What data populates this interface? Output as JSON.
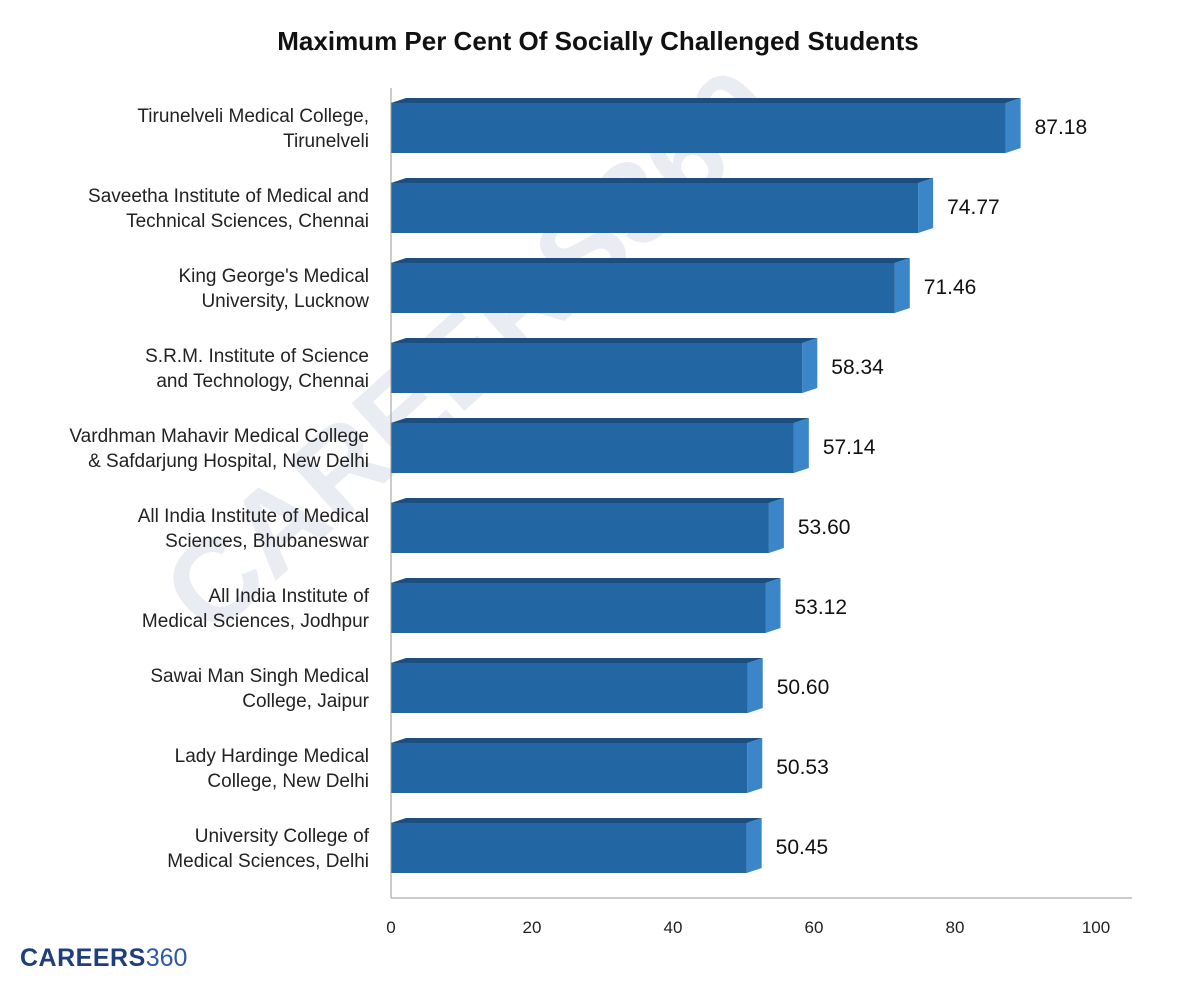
{
  "brand": {
    "name": "CAREERS",
    "number": "360",
    "watermark": "CAREERS360"
  },
  "colors": {
    "bar_front": "#2266a3",
    "bar_top": "#1c4f7f",
    "bar_side": "#3a86c8",
    "axis": "#9a9a9a"
  },
  "chart_data": {
    "type": "bar",
    "orientation": "horizontal",
    "title": "Maximum Per Cent Of Socially Challenged Students",
    "xlabel": "",
    "ylabel": "",
    "xlim": [
      0,
      100
    ],
    "xticks": [
      0,
      20,
      40,
      60,
      80,
      100
    ],
    "grid": false,
    "categories": [
      [
        "Tirunelveli Medical College,",
        "Tirunelveli"
      ],
      [
        "Saveetha Institute of Medical and",
        "Technical Sciences, Chennai"
      ],
      [
        "King George's Medical",
        "University, Lucknow"
      ],
      [
        "S.R.M. Institute of Science",
        "and Technology, Chennai"
      ],
      [
        "Vardhman Mahavir Medical College",
        "& Safdarjung Hospital, New Delhi"
      ],
      [
        "All India Institute of Medical",
        "Sciences, Bhubaneswar"
      ],
      [
        "All India Institute of",
        "Medical Sciences, Jodhpur"
      ],
      [
        "Sawai Man Singh Medical",
        "College, Jaipur"
      ],
      [
        "Lady Hardinge Medical",
        "College, New Delhi"
      ],
      [
        "University College of",
        "Medical Sciences, Delhi"
      ]
    ],
    "values": [
      87.18,
      74.77,
      71.46,
      58.34,
      57.14,
      53.6,
      53.12,
      50.6,
      50.53,
      50.45
    ],
    "value_labels": [
      "87.18",
      "74.77",
      "71.46",
      "58.34",
      "57.14",
      "53.60",
      "53.12",
      "50.60",
      "50.53",
      "50.45"
    ]
  }
}
